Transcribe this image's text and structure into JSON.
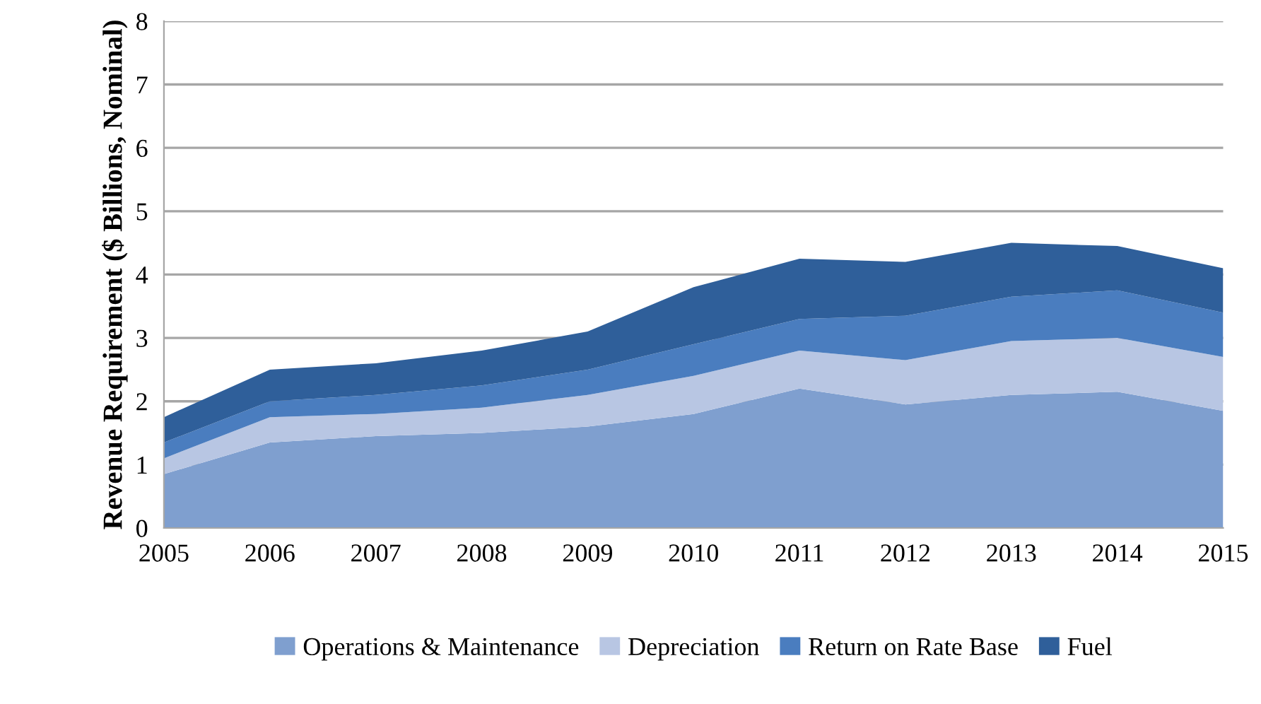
{
  "chart_data": {
    "type": "area",
    "stacked": true,
    "ylabel": "Revenue Requirement ($ Billions, Nominal)",
    "x": [
      2005,
      2006,
      2007,
      2008,
      2009,
      2010,
      2011,
      2012,
      2013,
      2014,
      2015
    ],
    "series": [
      {
        "name": "Operations & Maintenance",
        "color": "#7f9fcf",
        "values": [
          0.85,
          1.35,
          1.45,
          1.5,
          1.6,
          1.8,
          2.2,
          1.95,
          2.1,
          2.15,
          1.85
        ]
      },
      {
        "name": "Depreciation",
        "color": "#b8c6e3",
        "values": [
          0.25,
          0.4,
          0.35,
          0.4,
          0.5,
          0.6,
          0.6,
          0.7,
          0.85,
          0.85,
          0.85
        ]
      },
      {
        "name": "Return on Rate Base",
        "color": "#4a7dbf",
        "values": [
          0.25,
          0.25,
          0.3,
          0.35,
          0.4,
          0.5,
          0.5,
          0.7,
          0.7,
          0.75,
          0.7
        ]
      },
      {
        "name": "Fuel",
        "color": "#2f5f9a",
        "values": [
          0.4,
          0.5,
          0.5,
          0.55,
          0.6,
          0.9,
          0.95,
          0.85,
          0.85,
          0.7,
          0.7
        ]
      }
    ],
    "xlim": [
      2005,
      2015
    ],
    "xticks": [
      2005,
      2006,
      2007,
      2008,
      2009,
      2010,
      2011,
      2012,
      2013,
      2014,
      2015
    ],
    "ylim": [
      0,
      8
    ],
    "yticks": [
      0,
      1,
      2,
      3,
      4,
      5,
      6,
      7,
      8
    ],
    "grid": "y",
    "legend": "bottom"
  }
}
